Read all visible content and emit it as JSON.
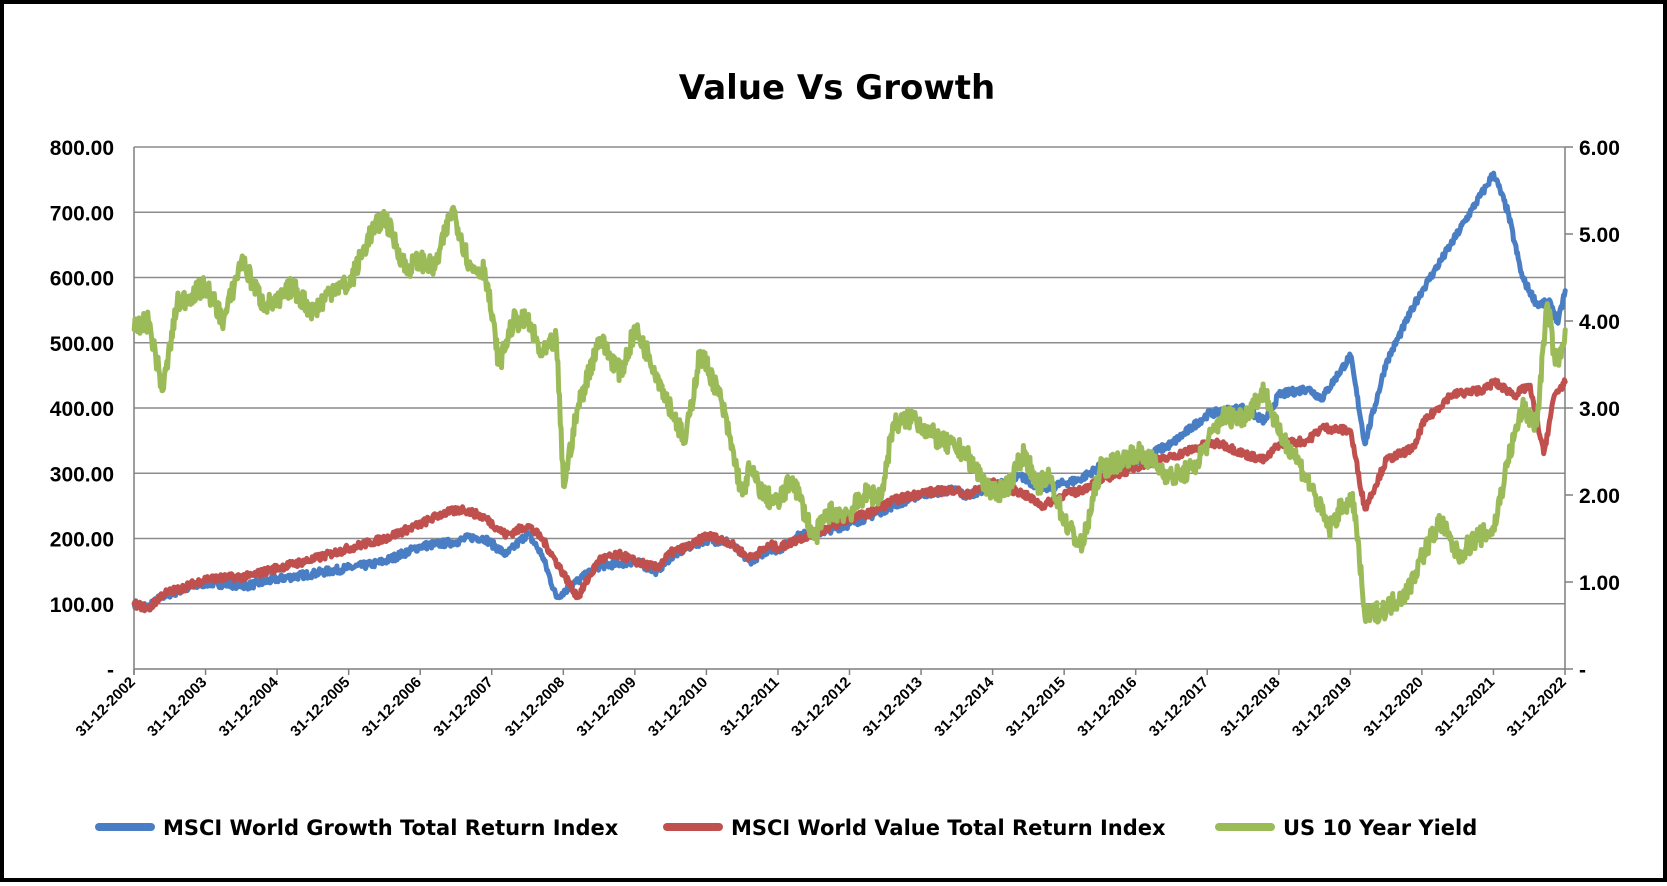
{
  "chart_data": {
    "type": "line",
    "title": "Value Vs Growth",
    "y_left": {
      "ylim": [
        0,
        800
      ],
      "tick_values": [
        0,
        100,
        200,
        300,
        400,
        500,
        600,
        700,
        800
      ],
      "tick_labels": [
        "-",
        "100.00",
        "200.00",
        "300.00",
        "400.00",
        "500.00",
        "600.00",
        "700.00",
        "800.00"
      ]
    },
    "y_right": {
      "ylim": [
        0,
        6
      ],
      "tick_values": [
        0,
        1,
        2,
        3,
        4,
        5,
        6
      ],
      "tick_labels": [
        "-",
        "1.00",
        "2.00",
        "3.00",
        "4.00",
        "5.00",
        "6.00"
      ]
    },
    "x_labels": [
      "31-12-2002",
      "31-12-2003",
      "31-12-2004",
      "31-12-2005",
      "31-12-2006",
      "31-12-2007",
      "31-12-2008",
      "31-12-2009",
      "31-12-2010",
      "31-12-2011",
      "31-12-2012",
      "31-12-2013",
      "31-12-2014",
      "31-12-2015",
      "31-12-2016",
      "31-12-2017",
      "31-12-2018",
      "31-12-2019",
      "31-12-2020",
      "31-12-2021",
      "31-12-2022"
    ],
    "x_range": [
      2002.9973,
      2022.9973
    ],
    "grid": true,
    "legend_position": "bottom",
    "series": [
      {
        "name": "MSCI World Growth Total Return Index",
        "axis": "left",
        "color": "#4A7EC4",
        "x": [
          2003.0,
          2003.2,
          2003.4,
          2003.7,
          2004.0,
          2004.3,
          2004.6,
          2005.0,
          2005.5,
          2006.0,
          2006.3,
          2006.5,
          2007.0,
          2007.5,
          2007.7,
          2007.9,
          2008.2,
          2008.5,
          2008.7,
          2008.9,
          2009.2,
          2009.5,
          2009.8,
          2010.0,
          2010.3,
          2010.5,
          2010.8,
          2011.0,
          2011.3,
          2011.6,
          2011.9,
          2012.0,
          2012.3,
          2012.6,
          2013.0,
          2013.3,
          2013.6,
          2014.0,
          2014.5,
          2014.6,
          2015.0,
          2015.4,
          2015.7,
          2016.0,
          2016.2,
          2016.5,
          2016.9,
          2017.0,
          2017.5,
          2018.0,
          2018.2,
          2018.5,
          2018.8,
          2019.0,
          2019.4,
          2019.6,
          2020.0,
          2020.2,
          2020.5,
          2020.9,
          2021.0,
          2021.4,
          2021.7,
          2021.9,
          2022.0,
          2022.2,
          2022.4,
          2022.6,
          2022.8,
          2022.9,
          2023.0
        ],
        "values": [
          100,
          95,
          112,
          122,
          132,
          130,
          128,
          138,
          146,
          155,
          160,
          165,
          188,
          195,
          202,
          200,
          175,
          208,
          175,
          110,
          135,
          158,
          162,
          165,
          150,
          172,
          190,
          198,
          195,
          165,
          185,
          182,
          205,
          210,
          222,
          235,
          250,
          268,
          275,
          265,
          280,
          295,
          275,
          285,
          290,
          310,
          312,
          320,
          345,
          390,
          395,
          400,
          380,
          420,
          430,
          415,
          480,
          345,
          470,
          560,
          580,
          650,
          705,
          740,
          760,
          700,
          600,
          560,
          560,
          530,
          580
        ]
      },
      {
        "name": "MSCI World Value Total Return Index",
        "axis": "left",
        "color": "#C0504D",
        "x": [
          2003.0,
          2003.2,
          2003.4,
          2003.7,
          2004.0,
          2004.3,
          2004.6,
          2005.0,
          2005.5,
          2006.0,
          2006.5,
          2007.0,
          2007.3,
          2007.6,
          2007.9,
          2008.2,
          2008.5,
          2008.7,
          2009.2,
          2009.5,
          2009.8,
          2010.0,
          2010.3,
          2010.5,
          2010.8,
          2011.0,
          2011.3,
          2011.6,
          2011.9,
          2012.0,
          2012.3,
          2012.6,
          2013.0,
          2013.3,
          2013.6,
          2014.0,
          2014.5,
          2014.6,
          2015.0,
          2015.4,
          2015.7,
          2016.0,
          2016.2,
          2016.5,
          2016.9,
          2017.0,
          2017.5,
          2018.0,
          2018.2,
          2018.5,
          2018.8,
          2019.0,
          2019.4,
          2019.6,
          2020.0,
          2020.2,
          2020.5,
          2020.9,
          2021.0,
          2021.4,
          2021.7,
          2021.9,
          2022.0,
          2022.3,
          2022.5,
          2022.7,
          2022.85,
          2023.0
        ],
        "values": [
          100,
          92,
          115,
          125,
          138,
          140,
          142,
          155,
          168,
          185,
          200,
          222,
          238,
          245,
          232,
          205,
          220,
          200,
          110,
          168,
          175,
          165,
          155,
          178,
          190,
          205,
          195,
          170,
          190,
          185,
          200,
          212,
          230,
          240,
          258,
          270,
          275,
          265,
          285,
          270,
          250,
          268,
          272,
          290,
          305,
          310,
          325,
          345,
          345,
          330,
          320,
          345,
          350,
          370,
          365,
          245,
          320,
          340,
          375,
          420,
          425,
          430,
          440,
          420,
          435,
          330,
          420,
          440
        ]
      },
      {
        "name": "US 10 Year Yield",
        "axis": "right",
        "color": "#9BBB59",
        "x": [
          2003.0,
          2003.2,
          2003.4,
          2003.6,
          2003.8,
          2004.0,
          2004.25,
          2004.5,
          2004.8,
          2005.0,
          2005.2,
          2005.5,
          2005.8,
          2006.0,
          2006.3,
          2006.5,
          2006.8,
          2007.0,
          2007.2,
          2007.45,
          2007.7,
          2007.9,
          2008.1,
          2008.3,
          2008.5,
          2008.7,
          2008.9,
          2009.0,
          2009.2,
          2009.5,
          2009.8,
          2010.0,
          2010.2,
          2010.4,
          2010.7,
          2010.9,
          2011.0,
          2011.2,
          2011.5,
          2011.6,
          2011.8,
          2012.0,
          2012.2,
          2012.5,
          2012.7,
          2013.0,
          2013.2,
          2013.45,
          2013.6,
          2013.9,
          2014.0,
          2014.3,
          2014.6,
          2015.0,
          2015.2,
          2015.45,
          2015.6,
          2015.8,
          2016.0,
          2016.25,
          2016.5,
          2016.8,
          2017.0,
          2017.2,
          2017.5,
          2017.8,
          2018.0,
          2018.2,
          2018.5,
          2018.8,
          2019.0,
          2019.2,
          2019.5,
          2019.7,
          2019.9,
          2020.05,
          2020.2,
          2020.5,
          2020.8,
          2021.0,
          2021.25,
          2021.5,
          2021.75,
          2022.0,
          2022.2,
          2022.4,
          2022.6,
          2022.75,
          2022.85,
          2022.9,
          2023.0
        ],
        "values": [
          3.9,
          4.0,
          3.2,
          4.2,
          4.3,
          4.4,
          4.0,
          4.7,
          4.2,
          4.2,
          4.4,
          4.1,
          4.4,
          4.4,
          5.0,
          5.2,
          4.6,
          4.7,
          4.6,
          5.3,
          4.6,
          4.6,
          3.5,
          4.0,
          4.0,
          3.6,
          3.8,
          2.1,
          3.0,
          3.8,
          3.4,
          3.9,
          3.6,
          3.2,
          2.6,
          3.6,
          3.5,
          3.1,
          2.0,
          2.3,
          2.0,
          1.9,
          2.2,
          1.5,
          1.8,
          1.8,
          2.0,
          2.0,
          2.8,
          2.9,
          2.8,
          2.6,
          2.5,
          2.0,
          2.1,
          2.5,
          2.1,
          2.2,
          1.7,
          1.4,
          2.3,
          2.4,
          2.5,
          2.4,
          2.2,
          2.3,
          2.6,
          2.9,
          2.9,
          3.2,
          2.7,
          2.5,
          2.0,
          1.6,
          1.9,
          1.9,
          0.6,
          0.7,
          0.9,
          1.3,
          1.7,
          1.3,
          1.5,
          1.6,
          2.4,
          3.0,
          2.8,
          4.2,
          3.6,
          3.5,
          3.9
        ]
      }
    ]
  }
}
